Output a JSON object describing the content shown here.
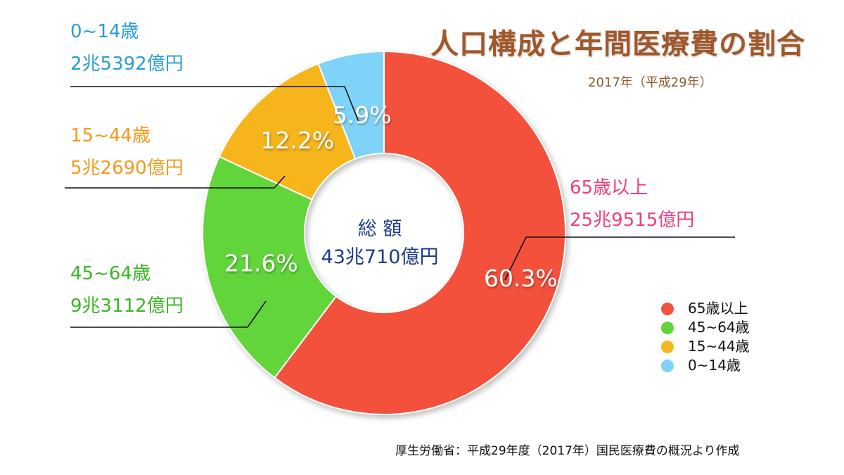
{
  "title": "人口構成と年間医療費の割合",
  "subtitle": "2017年（平成29年）",
  "source": "厚生労働省：平成29年度（2017年）国民医療費の概況より作成",
  "center": {
    "line1": "総 額",
    "line2": "43兆710億円"
  },
  "chart_data": {
    "type": "pie",
    "donut": true,
    "title": "人口構成と年間医療費の割合",
    "unit": "%",
    "total": "43兆710億円",
    "series": [
      {
        "name": "65歳以上",
        "value": 60.3,
        "label": "60.3%",
        "amount": "25兆9515億円",
        "color": "#f4513c"
      },
      {
        "name": "45~64歳",
        "value": 21.6,
        "label": "21.6%",
        "amount": "9兆3112億円",
        "color": "#62d53b"
      },
      {
        "name": "15~44歳",
        "value": 12.2,
        "label": "12.2%",
        "amount": "5兆2690億円",
        "color": "#f7b51e"
      },
      {
        "name": "0~14歳",
        "value": 5.9,
        "label": "5.9%",
        "amount": "2兆5392億円",
        "color": "#7fd3f8"
      }
    ],
    "legend_position": "right"
  },
  "labels": {
    "s0": {
      "name": "65歳以上",
      "amount": "25兆9515億円",
      "color": "#ee3f7e"
    },
    "s1": {
      "name": "45~64歳",
      "amount": "9兆3112億円",
      "color": "#3ab523"
    },
    "s2": {
      "name": "15~44歳",
      "amount": "5兆2690億円",
      "color": "#f39a1a"
    },
    "s3": {
      "name": "0~14歳",
      "amount": "2兆5392億円",
      "color": "#2a9bd8"
    }
  },
  "legend": [
    {
      "label": "65歳以上",
      "color": "#f4513c"
    },
    {
      "label": "45~64歳",
      "color": "#62d53b"
    },
    {
      "label": "15~44歳",
      "color": "#f7b51e"
    },
    {
      "label": "0~14歳",
      "color": "#7fd3f8"
    }
  ]
}
